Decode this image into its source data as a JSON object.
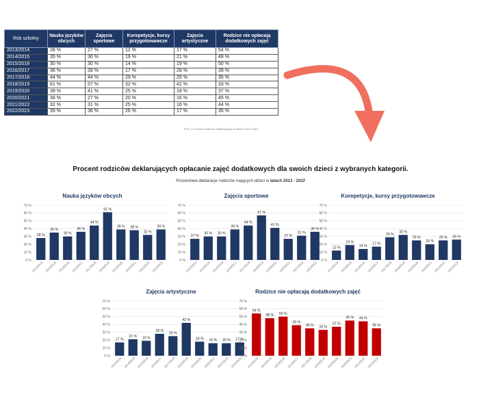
{
  "table": {
    "headers": [
      "Rok szkolny",
      "Nauka języków obcych",
      "Zajęcia sportowe",
      "Korepetycje, kursy przygotowawcze",
      "Zajęcia artystyczne",
      "Rodzice nie opłacają dodatkowych zajęć"
    ],
    "rows": [
      [
        "2013/2014",
        "28 %",
        "27 %",
        "12 %",
        "17 %",
        "54 %"
      ],
      [
        "2014/2015",
        "35 %",
        "30 %",
        "19 %",
        "21 %",
        "48 %"
      ],
      [
        "2015/2016",
        "30 %",
        "30 %",
        "14 %",
        "19 %",
        "50 %"
      ],
      [
        "2016/2017",
        "36 %",
        "39 %",
        "17 %",
        "28 %",
        "39 %"
      ],
      [
        "2017/2018",
        "44 %",
        "44 %",
        "29 %",
        "25 %",
        "35 %"
      ],
      [
        "2018/2019",
        "61 %",
        "57 %",
        "32 %",
        "42 %",
        "33 %"
      ],
      [
        "2019/2020",
        "39 %",
        "41 %",
        "25 %",
        "18 %",
        "37 %"
      ],
      [
        "2020/2021",
        "38 %",
        "27 %",
        "20 %",
        "16 %",
        "45 %"
      ],
      [
        "2021/2022",
        "32 %",
        "31 %",
        "25 %",
        "16 %",
        "44 %"
      ],
      [
        "2022/2023",
        "39 %",
        "36 %",
        "26 %",
        "17 %",
        "35 %"
      ]
    ]
  },
  "figure_caption": "RYS. 4. Procent rodziców deklarujących w latach 2013–2023",
  "main_title": "Procent rodziców deklarujących opłacanie zajęć dodatkowych dla swoich dzieci z wybranych kategorii.",
  "subtitle_prefix": "Procentowe deklaracje rodziców mających dzieci w ",
  "subtitle_bold": "latach 2013 - 2022",
  "chart_data": [
    {
      "type": "bar",
      "title": "Nauka języków obcych",
      "categories": [
        "2013/2014",
        "2014/2015",
        "2015/2016",
        "2016/2017",
        "2017/2018",
        "2018/2019",
        "2019/2020",
        "2020/2021",
        "2021/2022",
        "2022/2023"
      ],
      "values": [
        28,
        35,
        30,
        36,
        44,
        61,
        39,
        38,
        32,
        39
      ],
      "ylim": [
        0,
        70
      ],
      "yticks": [
        "0 %",
        "10 %",
        "20 %",
        "30 %",
        "40 %",
        "50 %",
        "60 %",
        "70 %"
      ],
      "color": "#1f3864",
      "value_labels": [
        "28 %",
        "35 %",
        "30 %",
        "36 %",
        "44 %",
        "61 %",
        "39 %",
        "38 %",
        "32 %",
        "39 %"
      ]
    },
    {
      "type": "bar",
      "title": "Zajęcia sportowe",
      "categories": [
        "2013/2014",
        "2014/2015",
        "2015/2016",
        "2016/2017",
        "2017/2018",
        "2018/2019",
        "2019/2020",
        "2020/2021",
        "2021/2022",
        "2022/2023"
      ],
      "values": [
        27,
        30,
        30,
        39,
        44,
        57,
        41,
        27,
        31,
        36
      ],
      "ylim": [
        0,
        70
      ],
      "yticks": [
        "0 %",
        "10 %",
        "20 %",
        "30 %",
        "40 %",
        "50 %",
        "60 %",
        "70 %"
      ],
      "color": "#1f3864",
      "value_labels": [
        "27 %",
        "30 %",
        "30 %",
        "39 %",
        "44 %",
        "57 %",
        "41 %",
        "27 %",
        "31 %",
        "36 %"
      ]
    },
    {
      "type": "bar",
      "title": "Korepetycje, kursy przygotowawcze",
      "categories": [
        "2013/2014",
        "2014/2015",
        "2015/2016",
        "2016/2017",
        "2017/2018",
        "2018/2019",
        "2019/2020",
        "2020/2021",
        "2021/2022",
        "2022/2023"
      ],
      "values": [
        12,
        19,
        14,
        17,
        29,
        32,
        25,
        20,
        25,
        26
      ],
      "ylim": [
        0,
        70
      ],
      "yticks": [
        "0 %",
        "10 %",
        "20 %",
        "30 %",
        "40 %",
        "50 %",
        "60 %",
        "70 %"
      ],
      "color": "#1f3864",
      "value_labels": [
        "12 %",
        "19 %",
        "14 %",
        "17 %",
        "29 %",
        "32 %",
        "25 %",
        "20 %",
        "25 %",
        "26 %"
      ]
    },
    {
      "type": "bar",
      "title": "Zajęcia artystyczne",
      "categories": [
        "2013/2014",
        "2014/2015",
        "2015/2016",
        "2016/2017",
        "2017/2018",
        "2018/2019",
        "2019/2020",
        "2020/2021",
        "2021/2022",
        "2022/2023"
      ],
      "values": [
        17,
        21,
        19,
        28,
        25,
        42,
        18,
        16,
        16,
        17
      ],
      "ylim": [
        0,
        70
      ],
      "yticks": [
        "0 %",
        "10 %",
        "20 %",
        "30 %",
        "40 %",
        "50 %",
        "60 %",
        "70 %"
      ],
      "color": "#1f3864",
      "value_labels": [
        "17 %",
        "21 %",
        "19 %",
        "28 %",
        "25 %",
        "42 %",
        "18 %",
        "16 %",
        "16 %",
        "17 %"
      ]
    },
    {
      "type": "bar",
      "title": "Rodzice nie opłacają dodatkowych zajęć",
      "categories": [
        "2013/2014",
        "2014/2015",
        "2015/2016",
        "2016/2017",
        "2017/2018",
        "2018/2019",
        "2019/2020",
        "2020/2021",
        "2021/2022",
        "2022/2023"
      ],
      "values": [
        54,
        48,
        50,
        39,
        35,
        33,
        37,
        45,
        44,
        35
      ],
      "ylim": [
        0,
        70
      ],
      "yticks": [
        "0 %",
        "10 %",
        "20 %",
        "30 %",
        "40 %",
        "50 %",
        "60 %",
        "70 %"
      ],
      "color": "#c00000",
      "value_labels": [
        "54 %",
        "48 %",
        "50 %",
        "39 %",
        "35 %",
        "33 %",
        "37 %",
        "45 %",
        "44 %",
        "35 %"
      ]
    }
  ],
  "colors": {
    "navy": "#1f3864",
    "red": "#c00000",
    "arrow": "#f07060"
  },
  "icons": {
    "arrow": "curved-arrow-down"
  }
}
